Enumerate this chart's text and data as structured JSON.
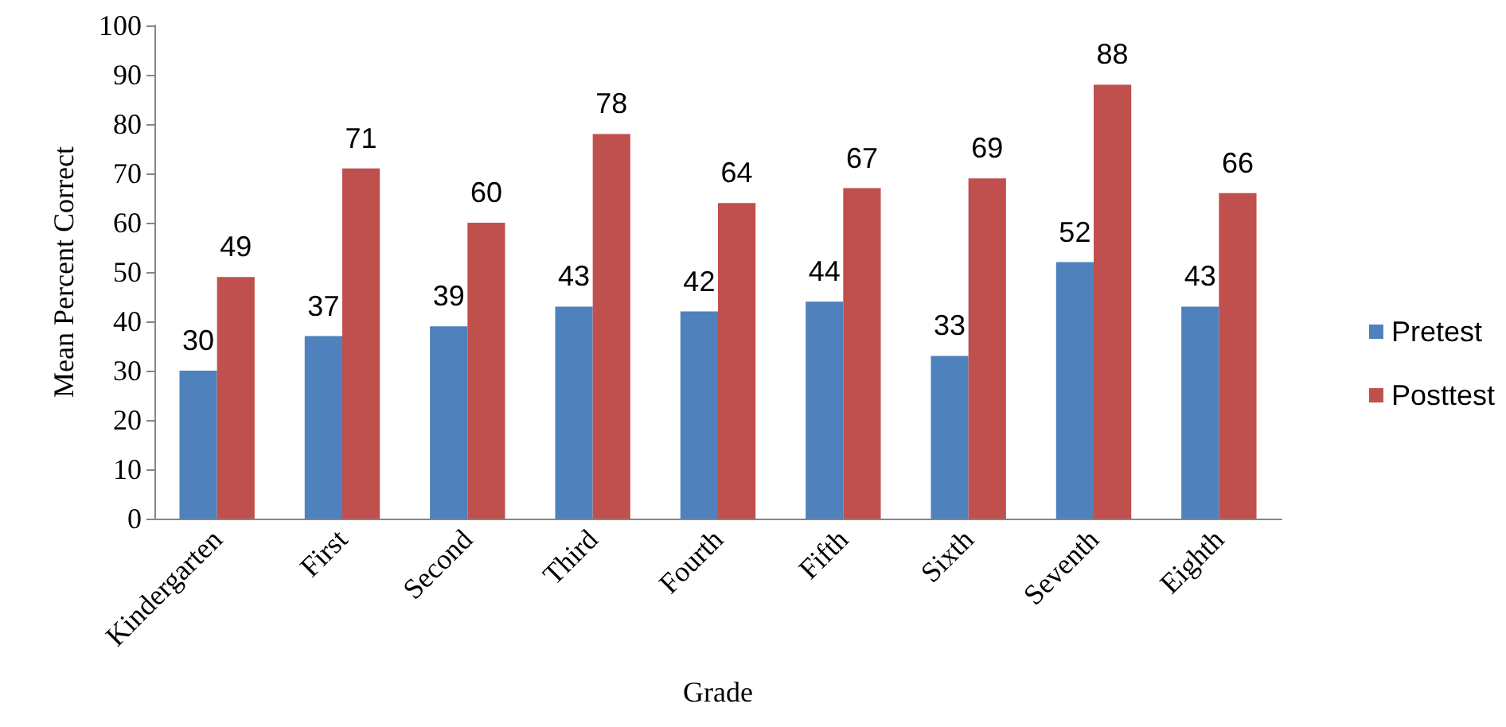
{
  "chart_data": {
    "type": "bar",
    "xlabel": "Grade",
    "ylabel": "Mean Percent Correct",
    "categories": [
      "Kindergarten",
      "First",
      "Second",
      "Third",
      "Fourth",
      "Fifth",
      "Sixth",
      "Seventh",
      "Eighth"
    ],
    "series": [
      {
        "name": "Pretest",
        "color": "#4f81bd",
        "values": [
          30,
          37,
          39,
          43,
          42,
          44,
          33,
          52,
          43
        ]
      },
      {
        "name": "Posttest",
        "color": "#c0504d",
        "values": [
          49,
          71,
          60,
          78,
          64,
          67,
          69,
          88,
          66
        ]
      }
    ],
    "ylim": [
      0,
      100
    ],
    "yticks": [
      0,
      10,
      20,
      30,
      40,
      50,
      60,
      70,
      80,
      90,
      100
    ],
    "grid": false,
    "legend": "right",
    "data_labels": true
  }
}
